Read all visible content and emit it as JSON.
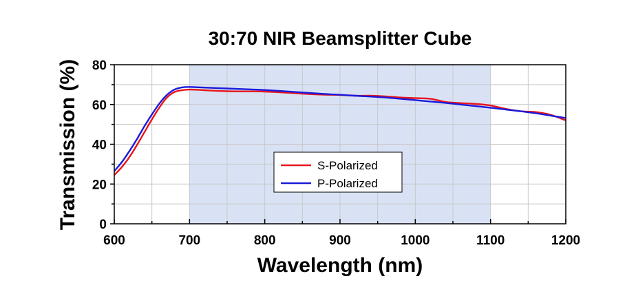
{
  "chart_data": {
    "type": "line",
    "title": "30:70 NIR Beamsplitter Cube",
    "xlabel": "Wavelength (nm)",
    "ylabel": "Transmission (%)",
    "xlim": [
      600,
      1200
    ],
    "ylim": [
      0,
      80
    ],
    "xticks": [
      600,
      700,
      800,
      900,
      1000,
      1100,
      1200
    ],
    "yticks": [
      0,
      20,
      40,
      60,
      80
    ],
    "grid": true,
    "legend_position": "center",
    "shaded_region": {
      "x": [
        700,
        1100
      ],
      "color": "#d9e2f5"
    },
    "series": [
      {
        "name": "S-Polarized",
        "color": "#e8141b",
        "x": [
          600,
          610,
          620,
          630,
          640,
          650,
          660,
          670,
          680,
          690,
          700,
          720,
          740,
          760,
          780,
          800,
          820,
          840,
          860,
          880,
          900,
          920,
          940,
          960,
          980,
          1000,
          1020,
          1040,
          1060,
          1080,
          1100,
          1120,
          1140,
          1160,
          1180,
          1200
        ],
        "y": [
          24.5,
          28.5,
          33.5,
          39.5,
          46,
          52.5,
          58.5,
          63.5,
          66.3,
          67.2,
          67.5,
          67.2,
          66.8,
          66.6,
          66.6,
          66.5,
          66.1,
          65.7,
          65.2,
          64.9,
          64.8,
          64.4,
          64.4,
          64.1,
          63.5,
          63.2,
          62.9,
          61.3,
          60.7,
          60.3,
          59.5,
          57.8,
          56.6,
          56.2,
          54.8,
          52.0
        ]
      },
      {
        "name": "P-Polarized",
        "color": "#1a1adc",
        "x": [
          600,
          610,
          620,
          630,
          640,
          650,
          660,
          670,
          680,
          690,
          700,
          720,
          740,
          760,
          780,
          800,
          820,
          840,
          860,
          880,
          900,
          920,
          940,
          960,
          980,
          1000,
          1020,
          1040,
          1060,
          1080,
          1100,
          1120,
          1140,
          1160,
          1180,
          1200
        ],
        "y": [
          26.5,
          31,
          36.5,
          42.5,
          49,
          55,
          60.5,
          64.8,
          67.5,
          68.6,
          68.8,
          68.5,
          68.2,
          67.9,
          67.6,
          67.3,
          66.8,
          66.3,
          65.8,
          65.3,
          64.9,
          64.4,
          64.0,
          63.5,
          62.9,
          62.2,
          61.5,
          60.8,
          60.0,
          59.2,
          58.4,
          57.5,
          56.6,
          55.6,
          54.4,
          53.2
        ]
      }
    ]
  }
}
